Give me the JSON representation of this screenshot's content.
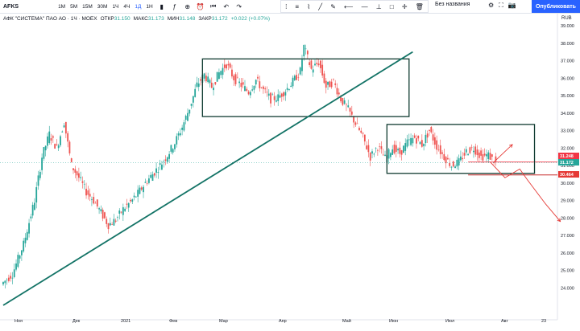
{
  "toolbar": {
    "symbol": "AFKS",
    "timeframes": [
      "1M",
      "5M",
      "15M",
      "30M",
      "1Ч",
      "4Ч",
      "1Д",
      "1Н"
    ],
    "active_timeframe": "1Д",
    "layout_name": "Без названия",
    "publish_label": "Опубликовать"
  },
  "legend": {
    "title": "АФК \"СИСТЕМА\" ПАО АО · 1Ч · MOEX",
    "open_label": "ОТКР",
    "open": "31.150",
    "high_label": "МАКС",
    "high": "31.173",
    "low_label": "МИН",
    "low": "31.148",
    "close_label": "ЗАКР",
    "close": "31.172",
    "change": "+0.022 (+0.07%)"
  },
  "currency": "RUB",
  "chart_data": {
    "type": "candlestick",
    "title": "АФК \"СИСТЕМА\" ПАО АО · 1Ч · MOEX",
    "ylim": [
      23.0,
      39.0
    ],
    "y_ticks": [
      "24.000",
      "25.000",
      "26.000",
      "27.000",
      "28.000",
      "29.000",
      "30.000",
      "31.000",
      "32.000",
      "33.000",
      "34.000",
      "35.000",
      "36.000",
      "37.000",
      "38.000",
      "39.000"
    ],
    "x_ticks": [
      "Ноя",
      "Дек",
      "2021",
      "Фев",
      "Мар",
      "Апр",
      "Май",
      "Июн",
      "Июл",
      "Авг",
      "23"
    ],
    "price_path": [
      [
        0,
        24.2
      ],
      [
        3,
        24.8
      ],
      [
        6,
        26.5
      ],
      [
        9,
        29.0
      ],
      [
        11,
        31.5
      ],
      [
        13,
        32.8
      ],
      [
        15,
        32.0
      ],
      [
        17,
        33.5
      ],
      [
        19,
        31.0
      ],
      [
        21,
        30.3
      ],
      [
        23,
        29.5
      ],
      [
        25,
        29.0
      ],
      [
        27,
        28.3
      ],
      [
        29,
        27.6
      ],
      [
        31,
        27.9
      ],
      [
        33,
        28.5
      ],
      [
        35,
        28.9
      ],
      [
        37,
        29.4
      ],
      [
        39,
        30.0
      ],
      [
        41,
        30.5
      ],
      [
        43,
        31.0
      ],
      [
        45,
        31.6
      ],
      [
        47,
        32.3
      ],
      [
        49,
        33.2
      ],
      [
        51,
        34.3
      ],
      [
        53,
        35.6
      ],
      [
        55,
        36.2
      ],
      [
        57,
        35.5
      ],
      [
        59,
        36.3
      ],
      [
        61,
        36.8
      ],
      [
        63,
        36.0
      ],
      [
        65,
        35.6
      ],
      [
        67,
        35.2
      ],
      [
        69,
        35.9
      ],
      [
        71,
        35.3
      ],
      [
        73,
        34.8
      ],
      [
        75,
        34.9
      ],
      [
        77,
        35.3
      ],
      [
        79,
        35.8
      ],
      [
        81,
        36.4
      ],
      [
        82,
        37.8
      ],
      [
        84,
        36.5
      ],
      [
        86,
        36.9
      ],
      [
        88,
        35.5
      ],
      [
        90,
        35.8
      ],
      [
        92,
        34.8
      ],
      [
        94,
        34.2
      ],
      [
        96,
        33.4
      ],
      [
        98,
        32.6
      ],
      [
        100,
        31.5
      ],
      [
        102,
        32.1
      ],
      [
        104,
        31.4
      ],
      [
        106,
        32.0
      ],
      [
        108,
        31.7
      ],
      [
        110,
        32.3
      ],
      [
        112,
        32.6
      ],
      [
        114,
        32.2
      ],
      [
        116,
        33.0
      ],
      [
        118,
        32.1
      ],
      [
        120,
        31.5
      ],
      [
        122,
        31.0
      ],
      [
        124,
        31.2
      ],
      [
        126,
        31.8
      ],
      [
        128,
        32.0
      ],
      [
        130,
        31.5
      ],
      [
        132,
        31.6
      ],
      [
        134,
        31.17
      ]
    ],
    "price_labels": [
      {
        "value": 31.248,
        "text": "31.248",
        "color": "#f23645"
      },
      {
        "value": 31.172,
        "text": "31.172",
        "color": "#26a69a"
      },
      {
        "value": 30.464,
        "text": "30.464",
        "color": "#e53935"
      }
    ],
    "trendline": {
      "from": [
        0,
        23.0
      ],
      "to": [
        111,
        37.5
      ],
      "color": "#137366"
    },
    "rectangles": [
      {
        "x": [
          54,
          110
        ],
        "y": [
          33.8,
          37.1
        ],
        "color": "#0f3a30"
      },
      {
        "x": [
          104,
          144
        ],
        "y": [
          30.55,
          33.35
        ],
        "color": "#0f3a30"
      }
    ],
    "hlines": [
      {
        "value": 31.2,
        "color": "#f23645"
      },
      {
        "value": 30.46,
        "color": "#c62828"
      }
    ],
    "arrows": [
      {
        "points": [
          [
            133,
            31.2
          ],
          [
            135,
            31.6
          ],
          [
            138,
            32.2
          ]
        ],
        "color": "#e53935"
      },
      {
        "points": [
          [
            132,
            31.2
          ],
          [
            136,
            30.3
          ],
          [
            140,
            30.8
          ],
          [
            142,
            30.2
          ],
          [
            147,
            28.8
          ],
          [
            151,
            27.8
          ]
        ],
        "color": "#e53935"
      }
    ]
  },
  "colors": {
    "up": "#26a69a",
    "down": "#ef5350",
    "accent": "#2962ff"
  }
}
